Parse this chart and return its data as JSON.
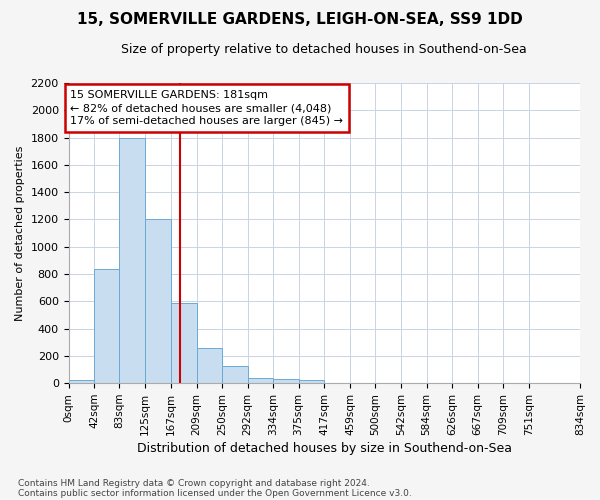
{
  "title": "15, SOMERVILLE GARDENS, LEIGH-ON-SEA, SS9 1DD",
  "subtitle": "Size of property relative to detached houses in Southend-on-Sea",
  "xlabel": "Distribution of detached houses by size in Southend-on-Sea",
  "ylabel": "Number of detached properties",
  "bar_values": [
    25,
    840,
    1800,
    1200,
    590,
    255,
    125,
    40,
    30,
    20,
    2,
    0,
    0,
    0,
    0,
    0,
    0,
    0,
    0
  ],
  "bar_edges": [
    0,
    42,
    83,
    125,
    167,
    209,
    250,
    292,
    334,
    375,
    417,
    459,
    500,
    542,
    584,
    626,
    667,
    709,
    751,
    834
  ],
  "tick_labels": [
    "0sqm",
    "42sqm",
    "83sqm",
    "125sqm",
    "167sqm",
    "209sqm",
    "250sqm",
    "292sqm",
    "334sqm",
    "375sqm",
    "417sqm",
    "459sqm",
    "500sqm",
    "542sqm",
    "584sqm",
    "626sqm",
    "667sqm",
    "709sqm",
    "751sqm",
    "834sqm"
  ],
  "bar_color": "#c9ddf0",
  "bar_edge_color": "#6aaad4",
  "grid_color": "#c8d4e3",
  "vline_x": 181,
  "vline_color": "#cc0000",
  "annotation_title": "15 SOMERVILLE GARDENS: 181sqm",
  "annotation_line1": "← 82% of detached houses are smaller (4,048)",
  "annotation_line2": "17% of semi-detached houses are larger (845) →",
  "annotation_box_color": "#cc0000",
  "ylim": [
    0,
    2200
  ],
  "yticks": [
    0,
    200,
    400,
    600,
    800,
    1000,
    1200,
    1400,
    1600,
    1800,
    2000,
    2200
  ],
  "footer1": "Contains HM Land Registry data © Crown copyright and database right 2024.",
  "footer2": "Contains public sector information licensed under the Open Government Licence v3.0.",
  "background_color": "#ffffff",
  "fig_background_color": "#f5f5f5"
}
